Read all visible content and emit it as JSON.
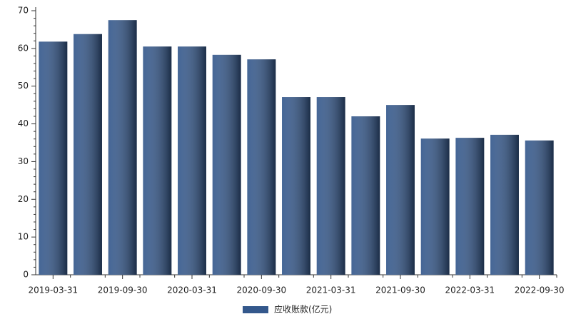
{
  "chart_data": {
    "type": "bar",
    "categories": [
      "2019-03-31",
      null,
      "2019-09-30",
      null,
      "2020-03-31",
      null,
      "2020-09-30",
      null,
      "2021-03-31",
      null,
      "2021-09-30",
      null,
      "2022-03-31",
      null,
      "2022-09-30"
    ],
    "series": [
      {
        "name": "应收账款(亿元)",
        "color": "#34588c",
        "values": [
          61.8,
          63.8,
          67.5,
          60.5,
          60.5,
          58.3,
          57.1,
          47.1,
          47.1,
          42.0,
          45.0,
          36.1,
          36.3,
          37.1,
          35.6
        ]
      }
    ],
    "ylim": [
      0,
      70
    ],
    "yticks": [
      0,
      10,
      20,
      30,
      40,
      50,
      60,
      70
    ],
    "grid": false,
    "legend": "bottom"
  }
}
